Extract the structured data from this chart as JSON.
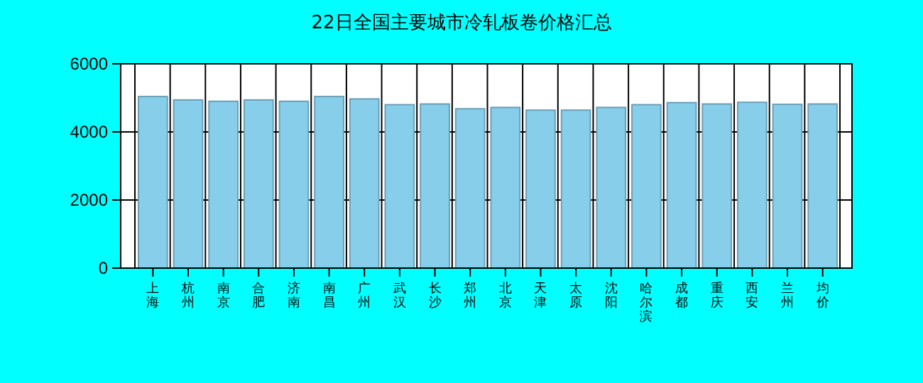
{
  "chart_data": {
    "type": "bar",
    "title": "22日全国主要城市冷轧板卷价格汇总",
    "categories": [
      "上海",
      "杭州",
      "南京",
      "合肥",
      "济南",
      "南昌",
      "广州",
      "武汉",
      "长沙",
      "郑州",
      "北京",
      "天津",
      "太原",
      "沈阳",
      "哈尔滨",
      "成都",
      "重庆",
      "西安",
      "兰州",
      "均价"
    ],
    "values": [
      5040,
      4940,
      4900,
      4940,
      4900,
      5040,
      4970,
      4800,
      4820,
      4680,
      4720,
      4640,
      4640,
      4720,
      4800,
      4860,
      4820,
      4870,
      4810,
      4820
    ],
    "color": "#87ceeb",
    "ylim": [
      0,
      6000
    ],
    "yticks": [
      0,
      2000,
      4000,
      6000
    ],
    "grid": true
  }
}
